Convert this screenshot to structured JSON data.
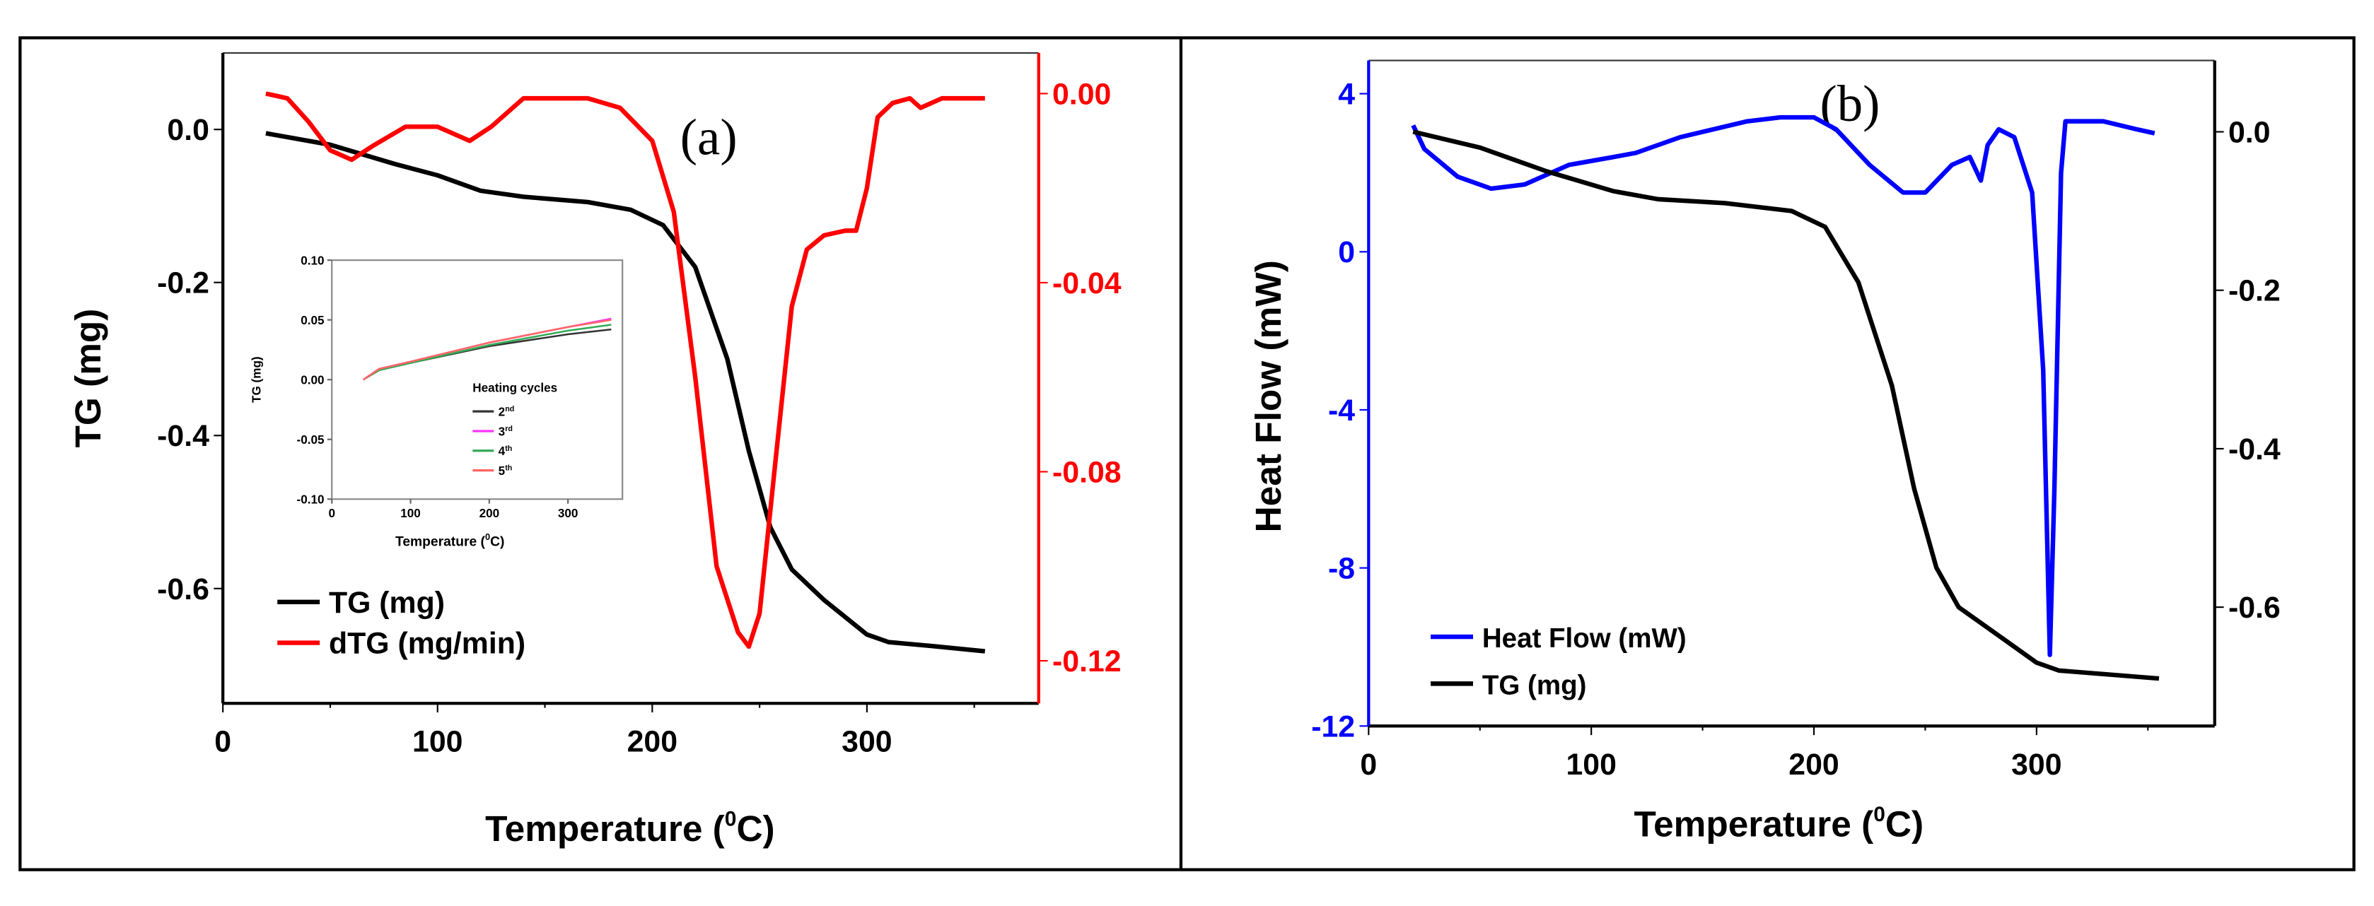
{
  "chart_data": [
    {
      "type": "line",
      "panel_label": "(a)",
      "xlabel": "Temperature (",
      "xlabel_sup": "0",
      "xlabel_end": "C)",
      "ylabel": "TG (mg)",
      "xlim": [
        0,
        380
      ],
      "ylim": [
        -0.75,
        0.1
      ],
      "y2lim": [
        -0.129,
        0.0086
      ],
      "x_ticks": [
        "0",
        "100",
        "200",
        "300"
      ],
      "y_ticks": [
        "0.0",
        "-0.2",
        "-0.4",
        "-0.6"
      ],
      "y2_ticks": [
        "0.00",
        "-0.04",
        "-0.08",
        "-0.12"
      ],
      "y2_color": "#ff0000",
      "legend_position": "bottom-left",
      "series": [
        {
          "name": "TG (mg)",
          "axis": "left",
          "color": "#000000",
          "x": [
            20,
            50,
            80,
            100,
            120,
            140,
            170,
            190,
            205,
            220,
            235,
            245,
            255,
            265,
            280,
            300,
            310,
            330,
            355
          ],
          "y": [
            -0.005,
            -0.02,
            -0.045,
            -0.06,
            -0.08,
            -0.088,
            -0.095,
            -0.105,
            -0.125,
            -0.18,
            -0.3,
            -0.42,
            -0.52,
            -0.575,
            -0.615,
            -0.66,
            -0.67,
            -0.675,
            -0.682
          ]
        },
        {
          "name": "dTG (mg/min)",
          "axis": "right",
          "color": "#ff0000",
          "x": [
            20,
            25,
            30,
            40,
            50,
            60,
            70,
            85,
            100,
            115,
            125,
            140,
            150,
            170,
            185,
            200,
            210,
            220,
            230,
            240,
            245,
            250,
            258,
            265,
            272,
            280,
            290,
            295,
            300,
            305,
            312,
            320,
            325,
            335,
            355
          ],
          "y": [
            0.0,
            -0.0005,
            -0.001,
            -0.006,
            -0.012,
            -0.014,
            -0.011,
            -0.007,
            -0.007,
            -0.01,
            -0.007,
            -0.001,
            -0.001,
            -0.001,
            -0.003,
            -0.01,
            -0.025,
            -0.06,
            -0.1,
            -0.114,
            -0.117,
            -0.11,
            -0.075,
            -0.045,
            -0.033,
            -0.03,
            -0.029,
            -0.029,
            -0.02,
            -0.005,
            -0.002,
            -0.001,
            -0.003,
            -0.001,
            -0.001
          ]
        }
      ],
      "inset": {
        "xlabel": "Temperature (",
        "xlabel_sup": "0",
        "xlabel_end": "C)",
        "ylabel": "TG (mg)",
        "xlim": [
          0,
          380
        ],
        "ylim": [
          -0.1,
          0.1
        ],
        "x_ticks": [
          "0",
          "100",
          "200",
          "300"
        ],
        "y_ticks": [
          "0.10",
          "0.05",
          "0.00",
          "-0.05",
          "-0.10"
        ],
        "legend_title": "Heating cycles",
        "series": [
          {
            "name": "2",
            "sup": "nd",
            "color": "#333333",
            "x": [
              40,
              60,
              100,
              200,
              300,
              355
            ],
            "y": [
              0,
              0.008,
              0.014,
              0.028,
              0.038,
              0.042
            ]
          },
          {
            "name": "3",
            "sup": "rd",
            "color": "#ff33ff",
            "x": [
              40,
              60,
              100,
              200,
              300,
              355
            ],
            "y": [
              0,
              0.009,
              0.015,
              0.031,
              0.044,
              0.051
            ]
          },
          {
            "name": "4",
            "sup": "th",
            "color": "#33aa55",
            "x": [
              40,
              60,
              100,
              200,
              300,
              355
            ],
            "y": [
              0,
              0.008,
              0.014,
              0.029,
              0.041,
              0.046
            ]
          },
          {
            "name": "5",
            "sup": "th",
            "color": "#ff6666",
            "x": [
              40,
              60,
              100,
              200,
              300,
              355
            ],
            "y": [
              0,
              0.009,
              0.015,
              0.031,
              0.044,
              0.05
            ]
          }
        ]
      }
    },
    {
      "type": "line",
      "panel_label": "(b)",
      "xlabel": "Temperature (",
      "xlabel_sup": "0",
      "xlabel_end": "C)",
      "ylabel": "Heat Flow (mW)",
      "xlim": [
        0,
        380
      ],
      "ylim": [
        -12,
        4.84
      ],
      "y2lim": [
        -0.75,
        0.09
      ],
      "x_ticks": [
        "0",
        "100",
        "200",
        "300"
      ],
      "y_ticks": [
        "4",
        "0",
        "-4",
        "-8",
        "-12"
      ],
      "y2_ticks": [
        "0.0",
        "-0.2",
        "-0.4",
        "-0.6"
      ],
      "y_color": "#0000ff",
      "legend_position": "bottom-left",
      "series": [
        {
          "name": "Heat Flow (mW)",
          "axis": "left",
          "color": "#0000ff",
          "x": [
            20,
            25,
            40,
            55,
            70,
            90,
            110,
            120,
            140,
            170,
            185,
            200,
            210,
            225,
            240,
            250,
            262,
            270,
            275,
            278,
            283,
            290,
            298,
            303,
            306,
            308,
            311,
            313,
            330,
            345,
            353
          ],
          "y": [
            3.2,
            2.6,
            1.9,
            1.6,
            1.7,
            2.2,
            2.4,
            2.5,
            2.9,
            3.3,
            3.4,
            3.4,
            3.1,
            2.2,
            1.5,
            1.5,
            2.2,
            2.4,
            1.8,
            2.7,
            3.1,
            2.9,
            1.5,
            -3,
            -10.2,
            -6,
            2,
            3.3,
            3.3,
            3.1,
            3.0
          ]
        },
        {
          "name": "TG (mg)",
          "axis": "right",
          "color": "#000000",
          "x": [
            20,
            50,
            80,
            110,
            130,
            160,
            190,
            205,
            220,
            235,
            245,
            255,
            265,
            285,
            300,
            310,
            355
          ],
          "y": [
            0.0,
            -0.02,
            -0.05,
            -0.075,
            -0.085,
            -0.09,
            -0.1,
            -0.12,
            -0.19,
            -0.32,
            -0.45,
            -0.55,
            -0.6,
            -0.64,
            -0.67,
            -0.68,
            -0.69
          ]
        }
      ]
    }
  ]
}
